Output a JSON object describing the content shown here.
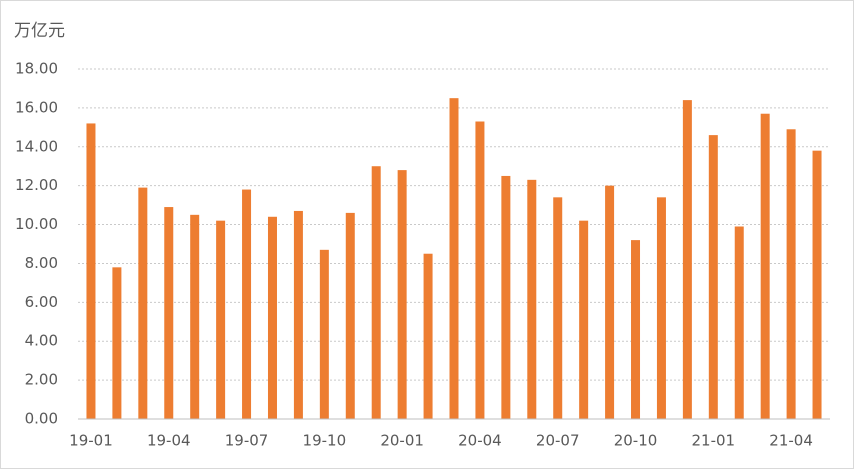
{
  "chart_data": {
    "type": "bar",
    "y_unit": "万亿元",
    "categories": [
      "19-01",
      null,
      null,
      "19-04",
      null,
      null,
      "19-07",
      null,
      null,
      "19-10",
      null,
      null,
      "20-01",
      null,
      null,
      "20-04",
      null,
      null,
      "20-07",
      null,
      null,
      "20-10",
      null,
      null,
      "21-01",
      null,
      null,
      "21-04",
      null
    ],
    "values": [
      15.2,
      7.8,
      11.9,
      10.9,
      10.5,
      10.2,
      11.8,
      10.4,
      10.7,
      8.7,
      10.6,
      13.0,
      12.8,
      8.5,
      16.5,
      15.3,
      12.5,
      12.3,
      11.4,
      10.2,
      12.0,
      9.2,
      11.4,
      16.4,
      14.6,
      9.9,
      15.7,
      14.9,
      13.8
    ],
    "color": "#ed7d31",
    "ylim": [
      0,
      18
    ],
    "yticks": [
      {
        "value": 0,
        "label": "0.00"
      },
      {
        "value": 2,
        "label": "2.00"
      },
      {
        "value": 4,
        "label": "4.00"
      },
      {
        "value": 6,
        "label": "6.00"
      },
      {
        "value": 8,
        "label": "8.00"
      },
      {
        "value": 10,
        "label": "10.00"
      },
      {
        "value": 12,
        "label": "12.00"
      },
      {
        "value": 14,
        "label": "14.00"
      },
      {
        "value": 16,
        "label": "16.00"
      },
      {
        "value": 18,
        "label": "18.00"
      }
    ],
    "grid": true
  }
}
